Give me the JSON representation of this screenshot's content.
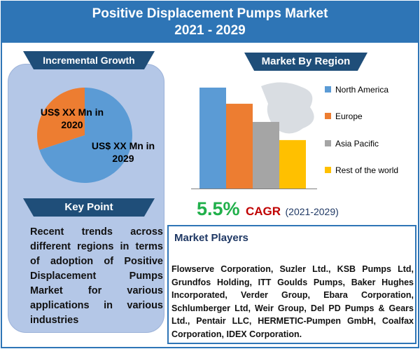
{
  "header": {
    "title_line1": "Positive Displacement Pumps Market",
    "title_line2": "2021 - 2029"
  },
  "incremental_growth": {
    "heading": "Incremental Growth",
    "label_2020": "US$ XX Mn in 2020",
    "label_2029": "US$ XX Mn in 2029"
  },
  "key_point": {
    "heading": "Key Point",
    "text": "Recent trends across different regions in terms of adoption of Positive Displacement Pumps Market for various applications in various industries"
  },
  "region": {
    "heading": "Market By Region"
  },
  "cagr": {
    "value": "5.5%",
    "word": "CAGR",
    "period": "(2021-2029)"
  },
  "market_players": {
    "heading": "Market Players",
    "text": "Flowserve Corporation, Suzler Ltd., KSB Pumps Ltd, Grundfos Holding, ITT Goulds Pumps, Baker Hughes Incorporated, Verder Group, Ebara Corporation, Schlumberger Ltd, Weir Group, Del PD Pumps & Gears Ltd., Pentair LLC, HERMETIC-Pumpen GmbH, Coalfax Corporation, IDEX Corporation."
  },
  "chart_data": [
    {
      "type": "pie",
      "title": "Incremental Growth",
      "categories": [
        "US$ XX Mn in 2020",
        "US$ XX Mn in 2029"
      ],
      "values": [
        30,
        70
      ],
      "colors": [
        "#ed7d31",
        "#5b9bd5"
      ]
    },
    {
      "type": "bar",
      "title": "Market By Region",
      "categories": [
        "North America",
        "Europe",
        "Asia Pacific",
        "Rest of the world"
      ],
      "values": [
        100,
        84,
        66,
        48
      ],
      "colors": [
        "#5b9bd5",
        "#ed7d31",
        "#a5a5a5",
        "#ffc000"
      ],
      "legend": "right"
    }
  ]
}
